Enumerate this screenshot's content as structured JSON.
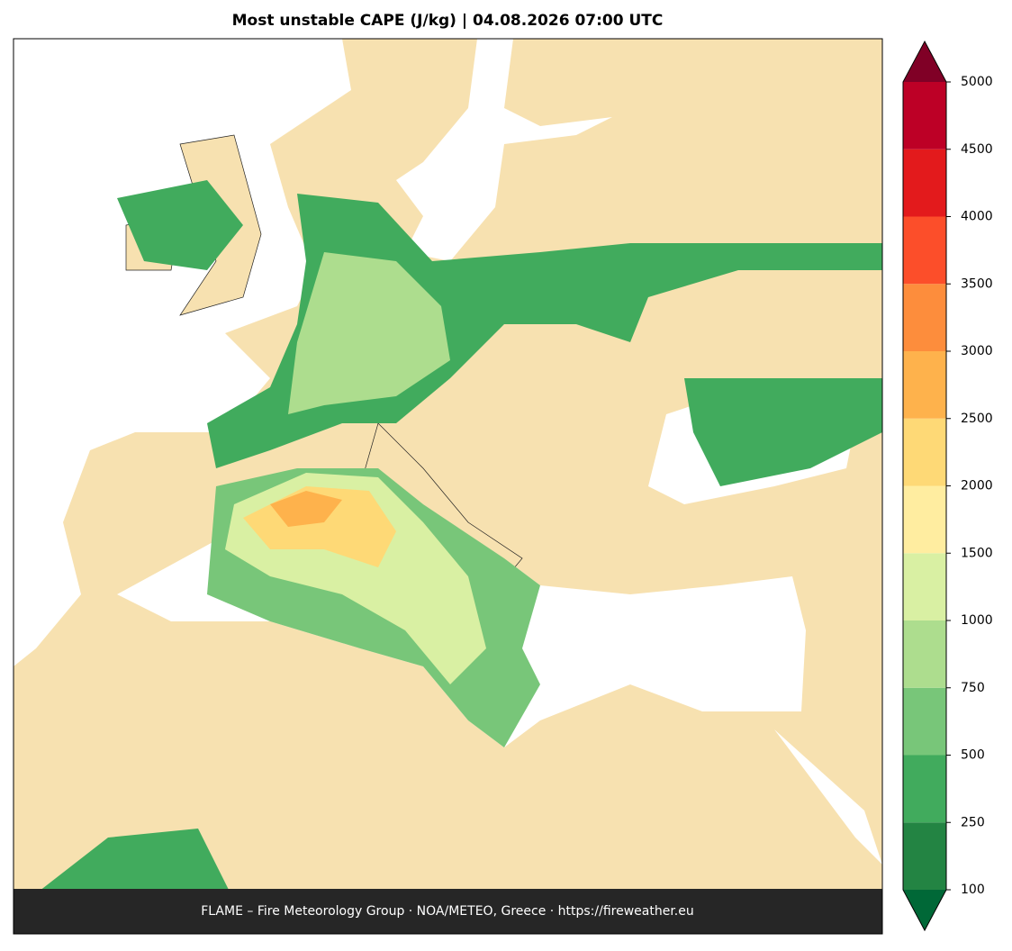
{
  "title": "Most unstable CAPE (J/kg)  |  04.08.2026 07:00 UTC",
  "colorbar": {
    "levels": [
      100,
      250,
      500,
      750,
      1000,
      1500,
      2000,
      2500,
      3000,
      3500,
      4000,
      4500,
      5000
    ],
    "colors": [
      "#238443",
      "#41ab5d",
      "#78c679",
      "#addd8e",
      "#d9f0a3",
      "#ffeda0",
      "#fed976",
      "#feb24c",
      "#fd8d3c",
      "#fc4e2a",
      "#e31a1c",
      "#bd0026"
    ],
    "under_color": "#006837",
    "over_color": "#800026"
  },
  "footer": "FLAME – Fire Meteorology Group · NOA/METEO, Greece · https://fireweather.eu"
}
